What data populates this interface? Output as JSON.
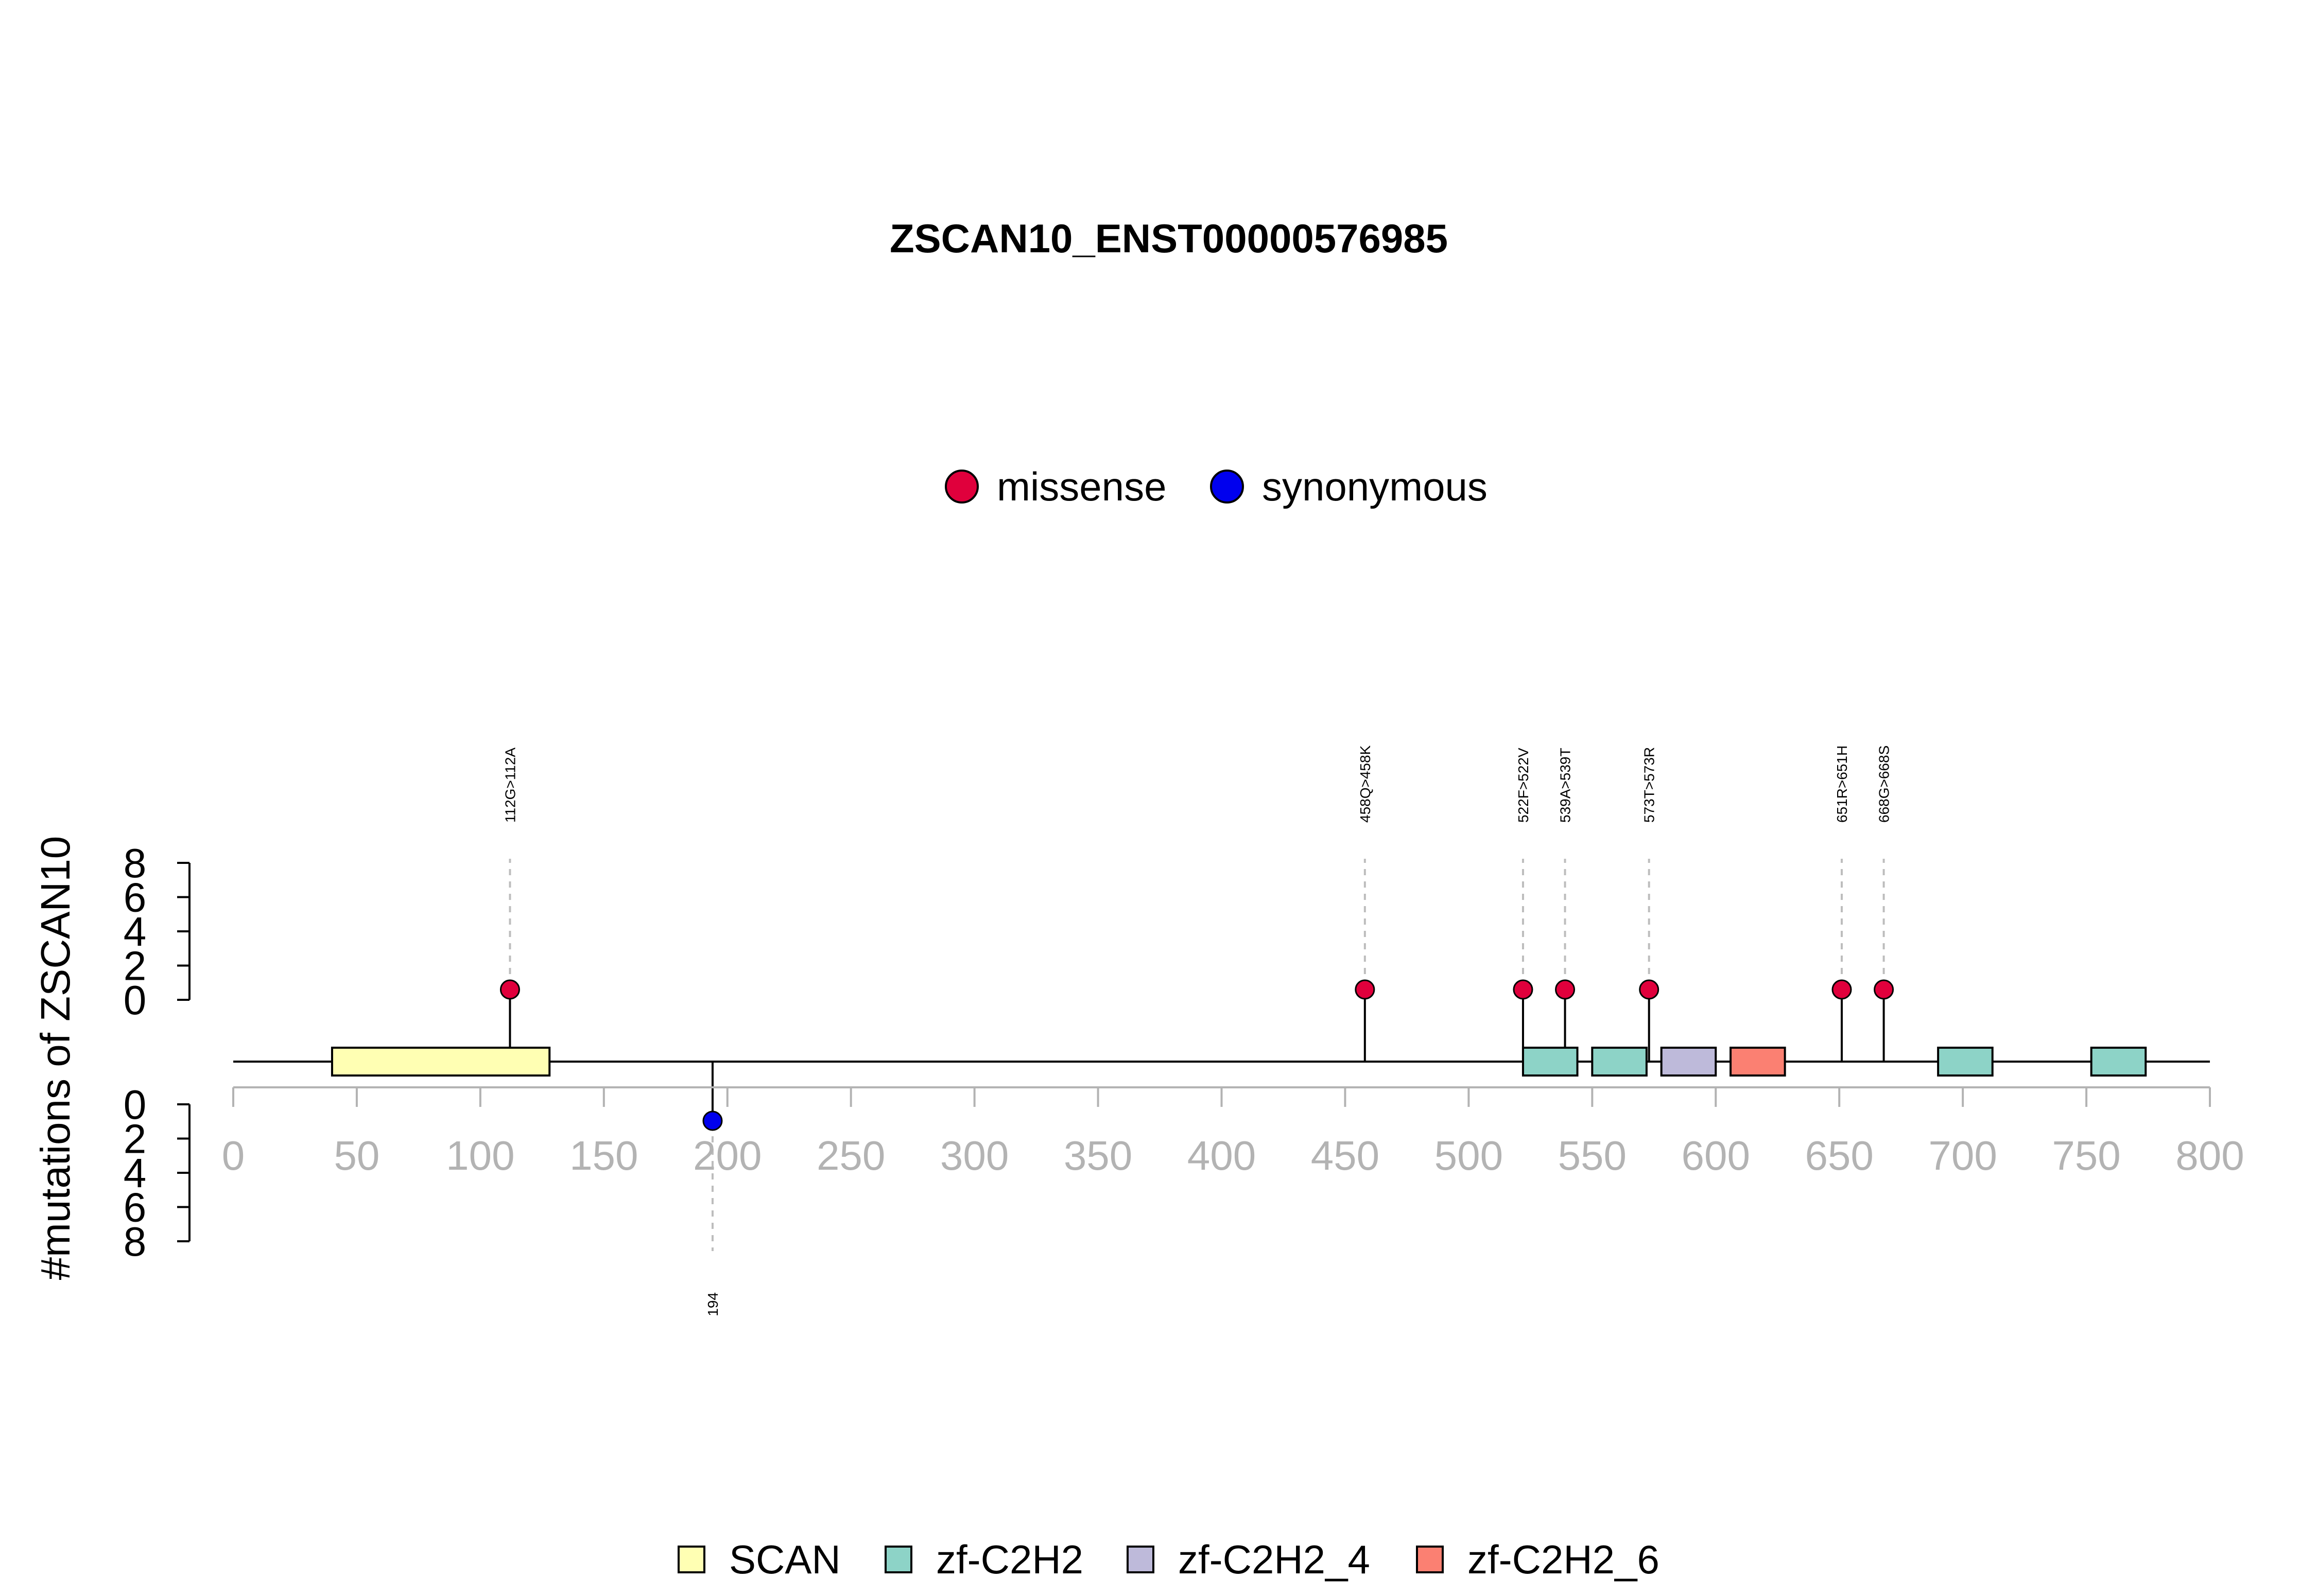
{
  "chart_data": {
    "type": "lollipop",
    "title": "ZSCAN10_ENST00000576985",
    "ylabel": "#mutations of ZSCAN10",
    "xlim": [
      0,
      800
    ],
    "x_ticks": [
      0,
      50,
      100,
      150,
      200,
      250,
      300,
      350,
      400,
      450,
      500,
      550,
      600,
      650,
      700,
      750,
      800
    ],
    "y_ticks_upper": [
      0,
      2,
      4,
      6,
      8
    ],
    "y_ticks_lower": [
      0,
      2,
      4,
      6,
      8
    ],
    "protein_length": 800,
    "mutation_legend": [
      {
        "name": "missense",
        "color": "#e0003c"
      },
      {
        "name": "synonymous",
        "color": "#0000ee"
      }
    ],
    "mutations": [
      {
        "position": 112,
        "label": "112G>112A",
        "count": 1,
        "type": "missense",
        "side": "top"
      },
      {
        "position": 458,
        "label": "458Q>458K",
        "count": 1,
        "type": "missense",
        "side": "top"
      },
      {
        "position": 522,
        "label": "522F>522V",
        "count": 1,
        "type": "missense",
        "side": "top"
      },
      {
        "position": 539,
        "label": "539A>539T",
        "count": 1,
        "type": "missense",
        "side": "top"
      },
      {
        "position": 573,
        "label": "573T>573R",
        "count": 1,
        "type": "missense",
        "side": "top"
      },
      {
        "position": 651,
        "label": "651R>651H",
        "count": 1,
        "type": "missense",
        "side": "top"
      },
      {
        "position": 668,
        "label": "668G>668S",
        "count": 1,
        "type": "missense",
        "side": "top"
      },
      {
        "position": 194,
        "label": "194",
        "count": 1,
        "type": "synonymous",
        "side": "bottom"
      }
    ],
    "domain_legend": [
      {
        "name": "SCAN",
        "color": "#ffffb3"
      },
      {
        "name": "zf-C2H2",
        "color": "#8dd3c7"
      },
      {
        "name": "zf-C2H2_4",
        "color": "#bebada"
      },
      {
        "name": "zf-C2H2_6",
        "color": "#fb8072"
      }
    ],
    "domains": [
      {
        "name": "SCAN",
        "start": 40,
        "end": 128
      },
      {
        "name": "zf-C2H2",
        "start": 522,
        "end": 544
      },
      {
        "name": "zf-C2H2",
        "start": 550,
        "end": 572
      },
      {
        "name": "zf-C2H2_4",
        "start": 578,
        "end": 600
      },
      {
        "name": "zf-C2H2_6",
        "start": 606,
        "end": 628
      },
      {
        "name": "zf-C2H2",
        "start": 690,
        "end": 712
      },
      {
        "name": "zf-C2H2",
        "start": 752,
        "end": 774
      }
    ]
  }
}
